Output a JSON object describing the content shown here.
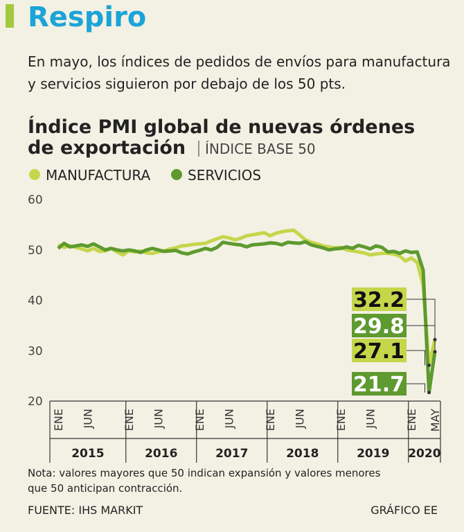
{
  "header": {
    "title": "Respiro",
    "text": [
      "En mayo, los índices de pedidos de envíos para manufactura",
      "y servicios siguieron por debajo de los 50 pts."
    ]
  },
  "chart_data": {
    "type": "line",
    "title": [
      "Índice PMI global de nuevas órdenes",
      "de exportación"
    ],
    "unit": "ÍNDICE BASE 50",
    "categories": [
      "ENE",
      null,
      null,
      null,
      null,
      "JUN",
      null,
      null,
      null,
      null,
      null,
      null,
      "ENE",
      null,
      null,
      null,
      null,
      "JUN",
      null,
      null,
      null,
      null,
      null,
      null,
      "ENE",
      null,
      null,
      null,
      null,
      "JUN",
      null,
      null,
      null,
      null,
      null,
      null,
      "ENE",
      null,
      null,
      null,
      null,
      "JUN",
      null,
      null,
      null,
      null,
      null,
      null,
      "ENE",
      null,
      null,
      null,
      null,
      "JUN",
      null,
      null,
      null,
      null,
      null,
      null,
      "ENE",
      null,
      null,
      null,
      "MAY"
    ],
    "years": [
      "2015",
      "2016",
      "2017",
      "2018",
      "2019",
      "2020"
    ],
    "series": [
      {
        "name": "MANUFACTURA",
        "color": "#c6d64b",
        "values": [
          51,
          50.5,
          50.8,
          50.5,
          50.2,
          49.8,
          50.3,
          49.7,
          49.8,
          50.3,
          49.6,
          49.0,
          49.8,
          49.6,
          49.8,
          49.4,
          49.3,
          49.6,
          49.8,
          50.2,
          50.4,
          50.8,
          50.9,
          51.1,
          51.2,
          51.3,
          51.8,
          52.2,
          52.6,
          52.4,
          52.0,
          52.3,
          52.8,
          53.0,
          53.2,
          53.4,
          52.8,
          53.3,
          53.6,
          53.8,
          53.9,
          53.0,
          52.0,
          51.5,
          51.2,
          50.8,
          50.6,
          50.4,
          50.5,
          50.0,
          49.8,
          49.6,
          49.4,
          49.0,
          49.2,
          49.3,
          49.3,
          49.2,
          48.8,
          47.8,
          48.4,
          47.5,
          43.0,
          27.1,
          32.2
        ]
      },
      {
        "name": "SERVICIOS",
        "color": "#5e9a2f",
        "values": [
          50.3,
          51.3,
          50.6,
          50.8,
          51.0,
          50.7,
          51.2,
          50.6,
          50.0,
          50.3,
          50.0,
          49.8,
          50.0,
          49.8,
          49.5,
          50.0,
          50.3,
          50.0,
          49.7,
          49.8,
          49.9,
          49.4,
          49.2,
          49.6,
          49.9,
          50.3,
          50.0,
          50.5,
          51.5,
          51.3,
          51.1,
          51.0,
          50.6,
          51.0,
          51.1,
          51.2,
          51.4,
          51.3,
          51.0,
          51.5,
          51.4,
          51.3,
          51.6,
          51.0,
          50.7,
          50.4,
          50.0,
          50.2,
          50.3,
          50.6,
          50.3,
          50.9,
          50.6,
          50.2,
          50.8,
          50.5,
          49.6,
          49.7,
          49.3,
          49.8,
          49.5,
          49.6,
          46.0,
          21.7,
          29.8
        ]
      }
    ],
    "ylim": [
      20,
      60
    ],
    "yticks": [
      20,
      30,
      40,
      50,
      60
    ],
    "note": [
      "Nota: valores mayores que 50 indican expansión y valores menores",
      "que 50 anticipan contracción."
    ],
    "source": "FUENTE: IHS MARKIT",
    "credit": "GRÁFICO EE"
  }
}
